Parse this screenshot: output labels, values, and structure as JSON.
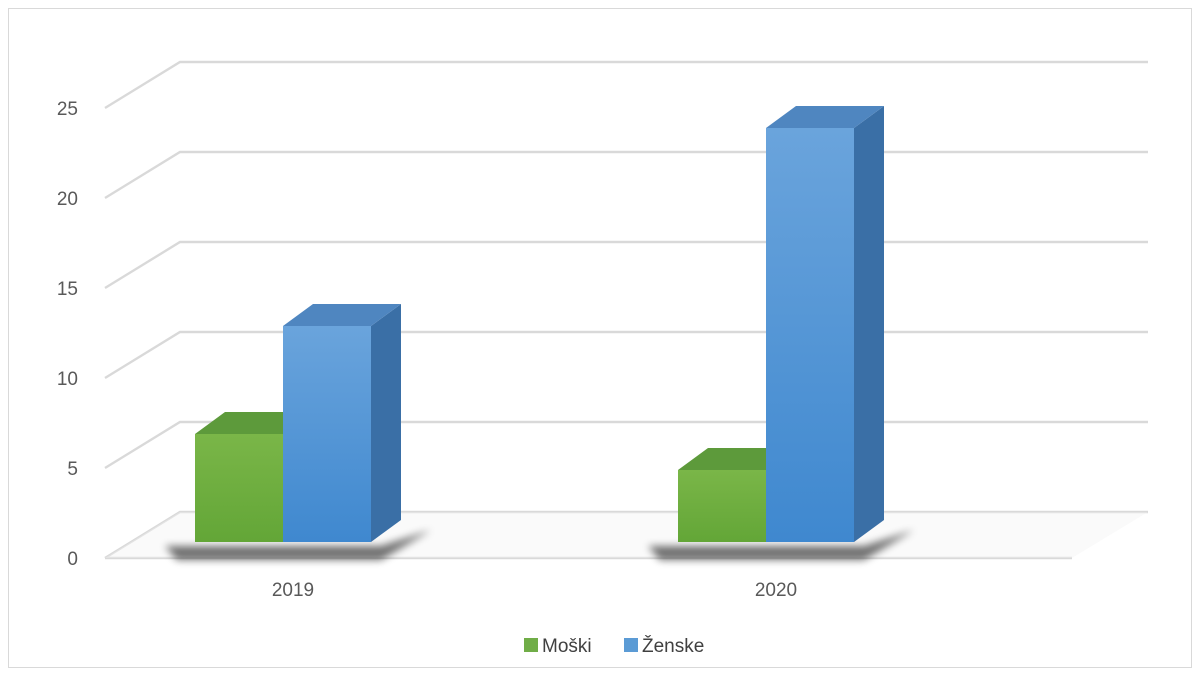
{
  "chart_data": {
    "type": "bar",
    "style": "3d-clustered-column",
    "categories": [
      "2019",
      "2020"
    ],
    "series": [
      {
        "name": "Moški",
        "values": [
          6,
          4
        ],
        "color": "#70ad47"
      },
      {
        "name": "Ženske",
        "values": [
          12,
          23
        ],
        "color": "#5b9bd5"
      }
    ],
    "ylim": [
      0,
      25
    ],
    "yticks": [
      "0",
      "5",
      "10",
      "15",
      "20",
      "25"
    ],
    "grid": true,
    "legend_position": "bottom"
  }
}
